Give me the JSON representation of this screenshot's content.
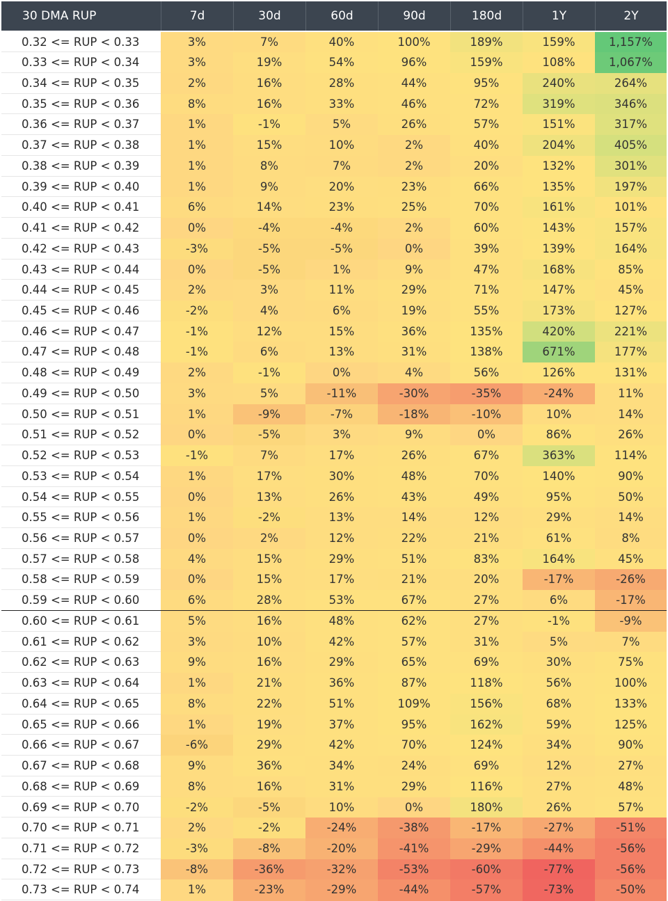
{
  "chart_data": {
    "type": "heatmap",
    "corner_label": "30 DMA RUP",
    "columns": [
      "7d",
      "30d",
      "60d",
      "90d",
      "180d",
      "1Y",
      "2Y"
    ],
    "rows": [
      {
        "label": "0.32 <= RUP < 0.33",
        "values": [
          3,
          7,
          40,
          100,
          189,
          159,
          1157
        ],
        "display": [
          "3%",
          "7%",
          "40%",
          "100%",
          "189%",
          "159%",
          "1,157%"
        ]
      },
      {
        "label": "0.33 <= RUP < 0.34",
        "values": [
          3,
          19,
          54,
          96,
          159,
          108,
          1067
        ],
        "display": [
          "3%",
          "19%",
          "54%",
          "96%",
          "159%",
          "108%",
          "1,067%"
        ]
      },
      {
        "label": "0.34 <= RUP < 0.35",
        "values": [
          2,
          16,
          28,
          44,
          95,
          240,
          264
        ],
        "display": [
          "2%",
          "16%",
          "28%",
          "44%",
          "95%",
          "240%",
          "264%"
        ]
      },
      {
        "label": "0.35 <= RUP < 0.36",
        "values": [
          8,
          16,
          33,
          46,
          72,
          319,
          346
        ],
        "display": [
          "8%",
          "16%",
          "33%",
          "46%",
          "72%",
          "319%",
          "346%"
        ]
      },
      {
        "label": "0.36 <= RUP < 0.37",
        "values": [
          1,
          -1,
          5,
          26,
          57,
          151,
          317
        ],
        "display": [
          "1%",
          "-1%",
          "5%",
          "26%",
          "57%",
          "151%",
          "317%"
        ]
      },
      {
        "label": "0.37 <= RUP < 0.38",
        "values": [
          1,
          15,
          10,
          2,
          40,
          204,
          405
        ],
        "display": [
          "1%",
          "15%",
          "10%",
          "2%",
          "40%",
          "204%",
          "405%"
        ]
      },
      {
        "label": "0.38 <= RUP < 0.39",
        "values": [
          1,
          8,
          7,
          2,
          20,
          132,
          301
        ],
        "display": [
          "1%",
          "8%",
          "7%",
          "2%",
          "20%",
          "132%",
          "301%"
        ]
      },
      {
        "label": "0.39 <= RUP < 0.40",
        "values": [
          1,
          9,
          20,
          23,
          66,
          135,
          197
        ],
        "display": [
          "1%",
          "9%",
          "20%",
          "23%",
          "66%",
          "135%",
          "197%"
        ]
      },
      {
        "label": "0.40 <= RUP < 0.41",
        "values": [
          6,
          14,
          23,
          25,
          70,
          161,
          101
        ],
        "display": [
          "6%",
          "14%",
          "23%",
          "25%",
          "70%",
          "161%",
          "101%"
        ]
      },
      {
        "label": "0.41 <= RUP < 0.42",
        "values": [
          0,
          -4,
          -4,
          2,
          60,
          143,
          157
        ],
        "display": [
          "0%",
          "-4%",
          "-4%",
          "2%",
          "60%",
          "143%",
          "157%"
        ]
      },
      {
        "label": "0.42 <= RUP < 0.43",
        "values": [
          -3,
          -5,
          -5,
          0,
          39,
          139,
          164
        ],
        "display": [
          "-3%",
          "-5%",
          "-5%",
          "0%",
          "39%",
          "139%",
          "164%"
        ]
      },
      {
        "label": "0.43 <= RUP < 0.44",
        "values": [
          0,
          -5,
          1,
          9,
          47,
          168,
          85
        ],
        "display": [
          "0%",
          "-5%",
          "1%",
          "9%",
          "47%",
          "168%",
          "85%"
        ]
      },
      {
        "label": "0.44 <= RUP < 0.45",
        "values": [
          2,
          3,
          11,
          29,
          71,
          147,
          45
        ],
        "display": [
          "2%",
          "3%",
          "11%",
          "29%",
          "71%",
          "147%",
          "45%"
        ]
      },
      {
        "label": "0.45 <= RUP < 0.46",
        "values": [
          -2,
          4,
          6,
          19,
          55,
          173,
          127
        ],
        "display": [
          "-2%",
          "4%",
          "6%",
          "19%",
          "55%",
          "173%",
          "127%"
        ]
      },
      {
        "label": "0.46 <= RUP < 0.47",
        "values": [
          -1,
          12,
          15,
          36,
          135,
          420,
          221
        ],
        "display": [
          "-1%",
          "12%",
          "15%",
          "36%",
          "135%",
          "420%",
          "221%"
        ]
      },
      {
        "label": "0.47 <= RUP < 0.48",
        "values": [
          -1,
          6,
          13,
          31,
          138,
          671,
          177
        ],
        "display": [
          "-1%",
          "6%",
          "13%",
          "31%",
          "138%",
          "671%",
          "177%"
        ]
      },
      {
        "label": "0.48 <= RUP < 0.49",
        "values": [
          2,
          -1,
          0,
          4,
          56,
          126,
          131
        ],
        "display": [
          "2%",
          "-1%",
          "0%",
          "4%",
          "56%",
          "126%",
          "131%"
        ]
      },
      {
        "label": "0.49 <= RUP < 0.50",
        "values": [
          3,
          5,
          -11,
          -30,
          -35,
          -24,
          11
        ],
        "display": [
          "3%",
          "5%",
          "-11%",
          "-30%",
          "-35%",
          "-24%",
          "11%"
        ]
      },
      {
        "label": "0.50 <= RUP < 0.51",
        "values": [
          1,
          -9,
          -7,
          -18,
          -10,
          10,
          14
        ],
        "display": [
          "1%",
          "-9%",
          "-7%",
          "-18%",
          "-10%",
          "10%",
          "14%"
        ]
      },
      {
        "label": "0.51 <= RUP < 0.52",
        "values": [
          0,
          -5,
          3,
          9,
          0,
          86,
          26
        ],
        "display": [
          "0%",
          "-5%",
          "3%",
          "9%",
          "0%",
          "86%",
          "26%"
        ]
      },
      {
        "label": "0.52 <= RUP < 0.53",
        "values": [
          -1,
          7,
          17,
          26,
          67,
          363,
          114
        ],
        "display": [
          "-1%",
          "7%",
          "17%",
          "26%",
          "67%",
          "363%",
          "114%"
        ]
      },
      {
        "label": "0.53 <= RUP < 0.54",
        "values": [
          1,
          17,
          30,
          48,
          70,
          140,
          90
        ],
        "display": [
          "1%",
          "17%",
          "30%",
          "48%",
          "70%",
          "140%",
          "90%"
        ]
      },
      {
        "label": "0.54 <= RUP < 0.55",
        "values": [
          0,
          13,
          26,
          43,
          49,
          95,
          50
        ],
        "display": [
          "0%",
          "13%",
          "26%",
          "43%",
          "49%",
          "95%",
          "50%"
        ]
      },
      {
        "label": "0.55 <= RUP < 0.56",
        "values": [
          1,
          -2,
          13,
          14,
          12,
          29,
          14
        ],
        "display": [
          "1%",
          "-2%",
          "13%",
          "14%",
          "12%",
          "29%",
          "14%"
        ]
      },
      {
        "label": "0.56 <= RUP < 0.57",
        "values": [
          0,
          2,
          12,
          22,
          21,
          61,
          8
        ],
        "display": [
          "0%",
          "2%",
          "12%",
          "22%",
          "21%",
          "61%",
          "8%"
        ]
      },
      {
        "label": "0.57 <= RUP < 0.58",
        "values": [
          4,
          15,
          29,
          51,
          83,
          164,
          45
        ],
        "display": [
          "4%",
          "15%",
          "29%",
          "51%",
          "83%",
          "164%",
          "45%"
        ]
      },
      {
        "label": "0.58 <= RUP < 0.59",
        "values": [
          0,
          15,
          17,
          21,
          20,
          -17,
          -26
        ],
        "display": [
          "0%",
          "15%",
          "17%",
          "21%",
          "20%",
          "-17%",
          "-26%"
        ]
      },
      {
        "label": "0.59 <= RUP < 0.60",
        "values": [
          6,
          28,
          53,
          67,
          27,
          6,
          -17
        ],
        "display": [
          "6%",
          "28%",
          "53%",
          "67%",
          "27%",
          "6%",
          "-17%"
        ]
      },
      {
        "label": "0.60 <= RUP < 0.61",
        "values": [
          5,
          16,
          48,
          62,
          27,
          -1,
          -9
        ],
        "display": [
          "5%",
          "16%",
          "48%",
          "62%",
          "27%",
          "-1%",
          "-9%"
        ]
      },
      {
        "label": "0.61 <= RUP < 0.62",
        "values": [
          3,
          10,
          42,
          57,
          31,
          5,
          7
        ],
        "display": [
          "3%",
          "10%",
          "42%",
          "57%",
          "31%",
          "5%",
          "7%"
        ]
      },
      {
        "label": "0.62 <= RUP < 0.63",
        "values": [
          9,
          16,
          29,
          65,
          69,
          30,
          75
        ],
        "display": [
          "9%",
          "16%",
          "29%",
          "65%",
          "69%",
          "30%",
          "75%"
        ]
      },
      {
        "label": "0.63 <= RUP < 0.64",
        "values": [
          1,
          21,
          36,
          87,
          118,
          56,
          100
        ],
        "display": [
          "1%",
          "21%",
          "36%",
          "87%",
          "118%",
          "56%",
          "100%"
        ]
      },
      {
        "label": "0.64 <= RUP < 0.65",
        "values": [
          8,
          22,
          51,
          109,
          156,
          68,
          133
        ],
        "display": [
          "8%",
          "22%",
          "51%",
          "109%",
          "156%",
          "68%",
          "133%"
        ]
      },
      {
        "label": "0.65 <= RUP < 0.66",
        "values": [
          1,
          19,
          37,
          95,
          162,
          59,
          125
        ],
        "display": [
          "1%",
          "19%",
          "37%",
          "95%",
          "162%",
          "59%",
          "125%"
        ]
      },
      {
        "label": "0.66 <= RUP < 0.67",
        "values": [
          -6,
          29,
          42,
          70,
          124,
          34,
          90
        ],
        "display": [
          "-6%",
          "29%",
          "42%",
          "70%",
          "124%",
          "34%",
          "90%"
        ]
      },
      {
        "label": "0.67 <= RUP < 0.68",
        "values": [
          9,
          36,
          34,
          24,
          69,
          12,
          27
        ],
        "display": [
          "9%",
          "36%",
          "34%",
          "24%",
          "69%",
          "12%",
          "27%"
        ]
      },
      {
        "label": "0.68 <= RUP < 0.69",
        "values": [
          8,
          16,
          31,
          29,
          116,
          27,
          48
        ],
        "display": [
          "8%",
          "16%",
          "31%",
          "29%",
          "116%",
          "27%",
          "48%"
        ]
      },
      {
        "label": "0.69 <= RUP < 0.70",
        "values": [
          -2,
          -5,
          10,
          0,
          180,
          26,
          57
        ],
        "display": [
          "-2%",
          "-5%",
          "10%",
          "0%",
          "180%",
          "26%",
          "57%"
        ]
      },
      {
        "label": "0.70 <= RUP < 0.71",
        "values": [
          2,
          -2,
          -24,
          -38,
          -17,
          -27,
          -51
        ],
        "display": [
          "2%",
          "-2%",
          "-24%",
          "-38%",
          "-17%",
          "-27%",
          "-51%"
        ]
      },
      {
        "label": "0.71 <= RUP < 0.72",
        "values": [
          -3,
          -8,
          -20,
          -41,
          -29,
          -44,
          -56
        ],
        "display": [
          "-3%",
          "-8%",
          "-20%",
          "-41%",
          "-29%",
          "-44%",
          "-56%"
        ]
      },
      {
        "label": "0.72 <= RUP < 0.73",
        "values": [
          -8,
          -36,
          -32,
          -53,
          -60,
          -77,
          -56
        ],
        "display": [
          "-8%",
          "-36%",
          "-32%",
          "-53%",
          "-60%",
          "-77%",
          "-56%"
        ]
      },
      {
        "label": "0.73 <= RUP < 0.74",
        "values": [
          1,
          -23,
          -29,
          -44,
          -57,
          -73,
          -50
        ],
        "display": [
          "1%",
          "-23%",
          "-29%",
          "-44%",
          "-57%",
          "-73%",
          "-50%"
        ]
      }
    ],
    "separator_after_rows": [
      "0.59 <= RUP < 0.60",
      "0.69 <= RUP < 0.70"
    ],
    "colors": {
      "header_bg": "#3c4550",
      "negative_extreme": "#f0645f",
      "neutral": "#fee37e",
      "positive_extreme": "#64c878"
    }
  }
}
